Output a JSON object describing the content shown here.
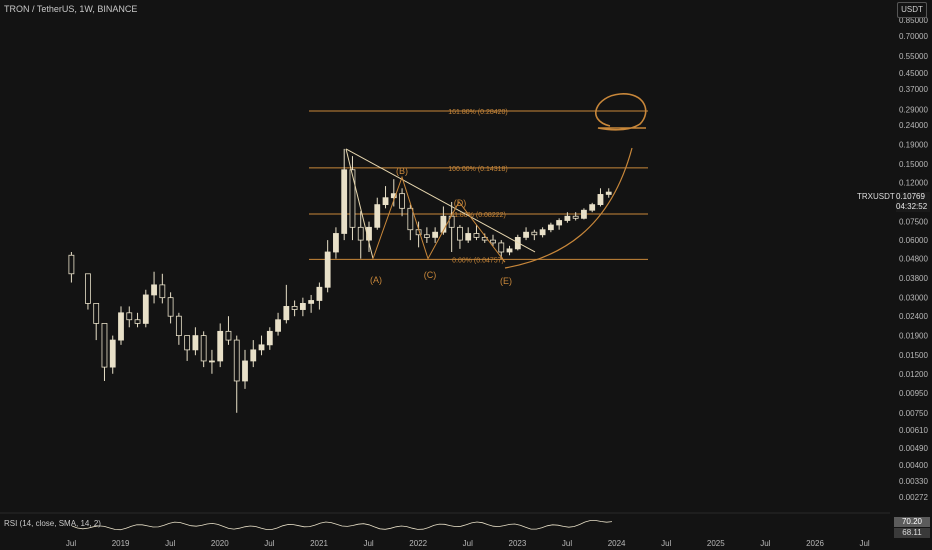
{
  "header": {
    "title": "TRON / TetherUS, 1W, BINANCE"
  },
  "currency_button": "USDT",
  "symbol_tag": "TRXUSDT",
  "last_price": "0.10769",
  "countdown": "04:32:52",
  "rsi_label": "RSI (14, close, SMA, 14, 2)",
  "rsi_values": [
    "70.20",
    "68.11"
  ],
  "colors": {
    "background": "#131313",
    "candle": "#e8e0c8",
    "drawing": "#c8873a",
    "axis_text": "#b8b8b8"
  },
  "chart_data": {
    "type": "candlestick",
    "price_axis": {
      "scale": "log",
      "ticks": [
        "0.85000",
        "0.70000",
        "0.55000",
        "0.45000",
        "0.37000",
        "0.29000",
        "0.24000",
        "0.19000",
        "0.15000",
        "0.12000",
        "0.09500",
        "0.07500",
        "0.06000",
        "0.04800",
        "0.03800",
        "0.03000",
        "0.02400",
        "0.01900",
        "0.01500",
        "0.01200",
        "0.00950",
        "0.00750",
        "0.00610",
        "0.00490",
        "0.00400",
        "0.00330",
        "0.00272"
      ]
    },
    "time_axis": {
      "ticks": [
        "Jul",
        "2019",
        "Jul",
        "2020",
        "Jul",
        "2021",
        "Jul",
        "2022",
        "Jul",
        "2023",
        "Jul",
        "2024",
        "Jul",
        "2025",
        "Jul",
        "2026",
        "Jul"
      ]
    },
    "series": [
      {
        "name": "TRXUSDT",
        "points": [
          [
            "2018-07",
            0.05,
            0.052,
            0.036,
            0.04
          ],
          [
            "2018-09",
            0.04,
            0.034,
            0.026,
            0.028
          ],
          [
            "2018-10",
            0.028,
            0.026,
            0.018,
            0.022
          ],
          [
            "2018-11",
            0.022,
            0.018,
            0.011,
            0.013
          ],
          [
            "2018-12",
            0.013,
            0.019,
            0.012,
            0.018
          ],
          [
            "2019-01",
            0.018,
            0.027,
            0.017,
            0.025
          ],
          [
            "2019-02",
            0.025,
            0.027,
            0.021,
            0.023
          ],
          [
            "2019-03",
            0.023,
            0.025,
            0.021,
            0.022
          ],
          [
            "2019-04",
            0.022,
            0.033,
            0.021,
            0.031
          ],
          [
            "2019-05",
            0.031,
            0.041,
            0.028,
            0.035
          ],
          [
            "2019-06",
            0.035,
            0.04,
            0.028,
            0.03
          ],
          [
            "2019-07",
            0.03,
            0.032,
            0.022,
            0.024
          ],
          [
            "2019-08",
            0.024,
            0.025,
            0.017,
            0.019
          ],
          [
            "2019-09",
            0.019,
            0.018,
            0.014,
            0.016
          ],
          [
            "2019-10",
            0.016,
            0.021,
            0.015,
            0.019
          ],
          [
            "2019-11",
            0.019,
            0.02,
            0.013,
            0.014
          ],
          [
            "2019-12",
            0.014,
            0.016,
            0.012,
            0.014
          ],
          [
            "2020-01",
            0.014,
            0.022,
            0.013,
            0.02
          ],
          [
            "2020-02",
            0.02,
            0.024,
            0.017,
            0.018
          ],
          [
            "2020-03",
            0.018,
            0.019,
            0.0075,
            0.011
          ],
          [
            "2020-04",
            0.011,
            0.016,
            0.01,
            0.014
          ],
          [
            "2020-05",
            0.014,
            0.018,
            0.013,
            0.016
          ],
          [
            "2020-06",
            0.016,
            0.019,
            0.015,
            0.017
          ],
          [
            "2020-07",
            0.017,
            0.021,
            0.016,
            0.02
          ],
          [
            "2020-08",
            0.02,
            0.025,
            0.019,
            0.023
          ],
          [
            "2020-09",
            0.023,
            0.035,
            0.022,
            0.027
          ],
          [
            "2020-10",
            0.027,
            0.029,
            0.024,
            0.026
          ],
          [
            "2020-11",
            0.026,
            0.03,
            0.024,
            0.028
          ],
          [
            "2020-12",
            0.028,
            0.031,
            0.025,
            0.029
          ],
          [
            "2021-01",
            0.029,
            0.036,
            0.026,
            0.034
          ],
          [
            "2021-02",
            0.034,
            0.06,
            0.032,
            0.052
          ],
          [
            "2021-03",
            0.052,
            0.07,
            0.048,
            0.065
          ],
          [
            "2021-04",
            0.065,
            0.18,
            0.06,
            0.14
          ],
          [
            "2021-05",
            0.14,
            0.165,
            0.06,
            0.07
          ],
          [
            "2021-06",
            0.07,
            0.085,
            0.048,
            0.06
          ],
          [
            "2021-07",
            0.06,
            0.075,
            0.052,
            0.07
          ],
          [
            "2021-08",
            0.07,
            0.1,
            0.068,
            0.092
          ],
          [
            "2021-09",
            0.092,
            0.115,
            0.088,
            0.1
          ],
          [
            "2021-10",
            0.1,
            0.125,
            0.09,
            0.105
          ],
          [
            "2021-11",
            0.105,
            0.112,
            0.08,
            0.088
          ],
          [
            "2021-12",
            0.088,
            0.092,
            0.06,
            0.068
          ],
          [
            "2022-01",
            0.068,
            0.075,
            0.055,
            0.064
          ],
          [
            "2022-02",
            0.064,
            0.07,
            0.058,
            0.062
          ],
          [
            "2022-03",
            0.062,
            0.07,
            0.058,
            0.066
          ],
          [
            "2022-04",
            0.066,
            0.09,
            0.064,
            0.08
          ],
          [
            "2022-05",
            0.08,
            0.095,
            0.052,
            0.07
          ],
          [
            "2022-06",
            0.07,
            0.072,
            0.054,
            0.06
          ],
          [
            "2022-07",
            0.06,
            0.07,
            0.058,
            0.065
          ],
          [
            "2022-08",
            0.065,
            0.072,
            0.06,
            0.062
          ],
          [
            "2022-09",
            0.062,
            0.065,
            0.058,
            0.06
          ],
          [
            "2022-10",
            0.06,
            0.064,
            0.056,
            0.058
          ],
          [
            "2022-11",
            0.058,
            0.06,
            0.048,
            0.052
          ],
          [
            "2022-12",
            0.052,
            0.056,
            0.05,
            0.054
          ],
          [
            "2023-01",
            0.054,
            0.064,
            0.053,
            0.062
          ],
          [
            "2023-02",
            0.062,
            0.07,
            0.06,
            0.066
          ],
          [
            "2023-03",
            0.066,
            0.068,
            0.06,
            0.064
          ],
          [
            "2023-04",
            0.064,
            0.07,
            0.062,
            0.068
          ],
          [
            "2023-05",
            0.068,
            0.074,
            0.066,
            0.072
          ],
          [
            "2023-06",
            0.072,
            0.078,
            0.068,
            0.076
          ],
          [
            "2023-07",
            0.076,
            0.084,
            0.074,
            0.08
          ],
          [
            "2023-08",
            0.08,
            0.084,
            0.076,
            0.078
          ],
          [
            "2023-09",
            0.078,
            0.088,
            0.077,
            0.086
          ],
          [
            "2023-10",
            0.086,
            0.094,
            0.084,
            0.092
          ],
          [
            "2023-11",
            0.092,
            0.112,
            0.09,
            0.104
          ],
          [
            "2023-12",
            0.104,
            0.112,
            0.1,
            0.107
          ]
        ]
      }
    ],
    "annotations": {
      "fib_levels": [
        {
          "label": "161.80% (0.28420)",
          "price": 0.2842
        },
        {
          "label": "100.00% (0.14318)",
          "price": 0.14318
        },
        {
          "label": "61.80% (0.08222)",
          "price": 0.08222
        },
        {
          "label": "0.00% (0.04757)",
          "price": 0.04757
        }
      ],
      "wave_labels": [
        "(A)",
        "(B)",
        "(C)",
        "(D)",
        "(E)"
      ],
      "elements": [
        "descending triangle trendline",
        "parabolic curve",
        "target circle"
      ]
    },
    "indicator": {
      "name": "RSI",
      "params": "14, close, SMA, 14, 2"
    },
    "grid": false
  }
}
